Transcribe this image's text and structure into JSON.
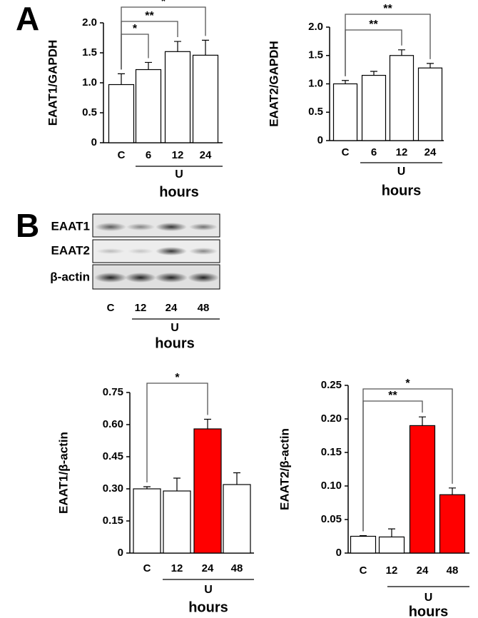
{
  "panel_labels": [
    "A",
    "B"
  ],
  "blot": {
    "rows": [
      "EAAT1",
      "EAAT2",
      "β-actin"
    ],
    "lanes": [
      "C",
      "12",
      "24",
      "48"
    ],
    "group_label": "U",
    "xlabel": "hours"
  },
  "chart_data": [
    {
      "type": "bar",
      "ylabel": "EAAT1/GAPDH",
      "categories": [
        "C",
        "6",
        "12",
        "24"
      ],
      "values": [
        0.97,
        1.22,
        1.52,
        1.46
      ],
      "errors": [
        0.18,
        0.12,
        0.17,
        0.25
      ],
      "colors": [
        "#ffffff",
        "#ffffff",
        "#ffffff",
        "#ffffff"
      ],
      "ylim": [
        0,
        2.0
      ],
      "yticks": [
        0,
        0.5,
        {
          "value": 1,
          "label": "1.0"
        },
        1.5,
        {
          "value": 2,
          "label": "2.0"
        }
      ],
      "group_label": "U",
      "xlabel": "hours",
      "significance": [
        {
          "label": "*",
          "between": [
            "C",
            "6"
          ]
        },
        {
          "label": "**",
          "between": [
            "C",
            "12"
          ]
        },
        {
          "label": "*",
          "between": [
            "C",
            "24"
          ]
        }
      ]
    },
    {
      "type": "bar",
      "ylabel": "EAAT2/GAPDH",
      "categories": [
        "C",
        "6",
        "12",
        "24"
      ],
      "values": [
        1.0,
        1.15,
        1.5,
        1.28
      ],
      "errors": [
        0.06,
        0.07,
        0.1,
        0.08
      ],
      "colors": [
        "#ffffff",
        "#ffffff",
        "#ffffff",
        "#ffffff"
      ],
      "ylim": [
        0,
        2.0
      ],
      "yticks": [
        0,
        0.5,
        {
          "value": 1,
          "label": "1.0"
        },
        1.5,
        {
          "value": 2,
          "label": "2.0"
        }
      ],
      "group_label": "U",
      "xlabel": "hours",
      "significance": [
        {
          "label": "**",
          "between": [
            "C",
            "12"
          ]
        },
        {
          "label": "**",
          "between": [
            "C",
            "24"
          ]
        }
      ]
    },
    {
      "type": "bar",
      "ylabel": "EAAT1/β-actin",
      "categories": [
        "C",
        "12",
        "24",
        "48"
      ],
      "values": [
        0.3,
        0.29,
        0.58,
        0.32
      ],
      "errors": [
        0.01,
        0.06,
        0.045,
        0.055
      ],
      "colors": [
        "#ffffff",
        "#ffffff",
        "#ff0000",
        "#ffffff"
      ],
      "ylim": [
        0,
        0.75
      ],
      "yticks": [
        0,
        0.15,
        {
          "value": 0.3,
          "label": "0.30"
        },
        0.45,
        {
          "value": 0.6,
          "label": "0.60"
        },
        0.75
      ],
      "group_label": "U",
      "xlabel": "hours",
      "significance": [
        {
          "label": "*",
          "between": [
            "C",
            "24"
          ]
        }
      ]
    },
    {
      "type": "bar",
      "ylabel": "EAAT2/β-actin",
      "categories": [
        "C",
        "12",
        "24",
        "48"
      ],
      "values": [
        0.025,
        0.024,
        0.19,
        0.087
      ],
      "errors": [
        0.001,
        0.012,
        0.013,
        0.01
      ],
      "colors": [
        "#ffffff",
        "#ffffff",
        "#ff0000",
        "#ff0000"
      ],
      "ylim": [
        0,
        0.25
      ],
      "yticks": [
        0,
        0.05,
        {
          "value": 0.1,
          "label": "0.10"
        },
        0.15,
        {
          "value": 0.2,
          "label": "0.20"
        },
        0.25
      ],
      "group_label": "U",
      "xlabel": "hours",
      "significance": [
        {
          "label": "*",
          "between": [
            "C",
            "48"
          ]
        },
        {
          "label": "**",
          "between": [
            "C",
            "24"
          ]
        }
      ]
    }
  ]
}
